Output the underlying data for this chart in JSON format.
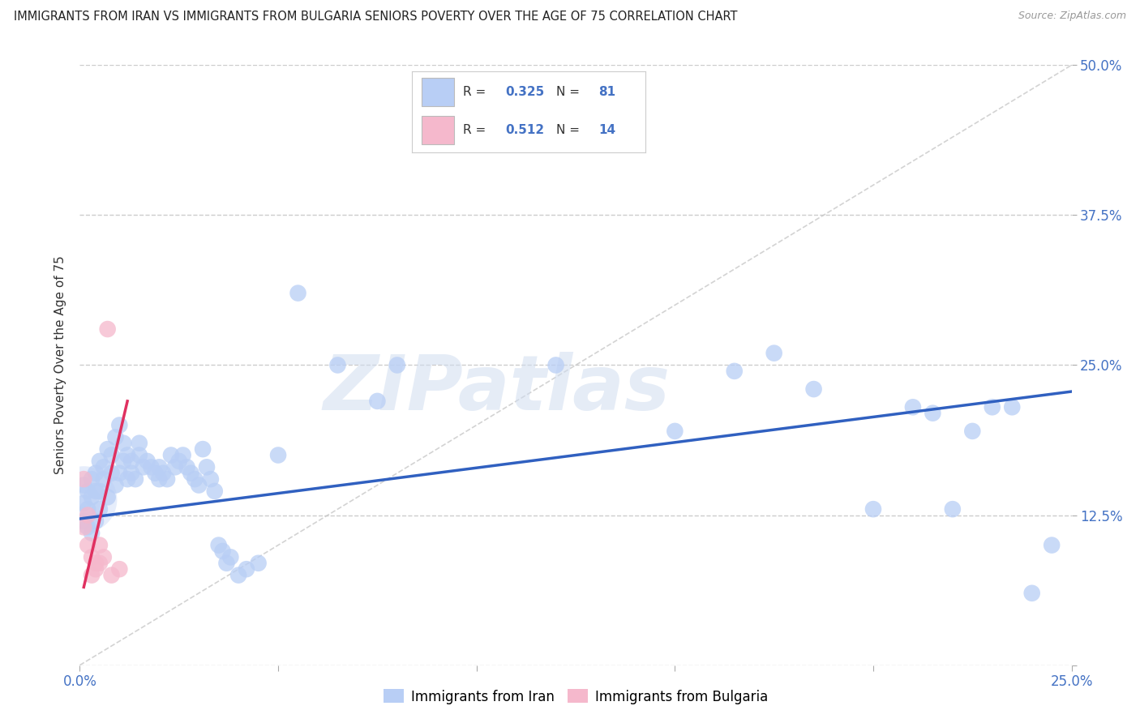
{
  "title": "IMMIGRANTS FROM IRAN VS IMMIGRANTS FROM BULGARIA SENIORS POVERTY OVER THE AGE OF 75 CORRELATION CHART",
  "source": "Source: ZipAtlas.com",
  "ylabel": "Seniors Poverty Over the Age of 75",
  "xlim": [
    0.0,
    0.25
  ],
  "ylim": [
    0.0,
    0.5
  ],
  "xticks": [
    0.0,
    0.05,
    0.1,
    0.15,
    0.2,
    0.25
  ],
  "yticks": [
    0.0,
    0.125,
    0.25,
    0.375,
    0.5
  ],
  "iran_color": "#b8cef5",
  "iran_line_color": "#3060c0",
  "bulgaria_color": "#f5b8cc",
  "bulgaria_line_color": "#e03060",
  "iran_R": "0.325",
  "iran_N": "81",
  "bulgaria_R": "0.512",
  "bulgaria_N": "14",
  "legend_label_iran": "Immigrants from Iran",
  "legend_label_bulgaria": "Immigrants from Bulgaria",
  "watermark": "ZIPatlas",
  "label_color": "#4472c4",
  "grid_color": "#cccccc",
  "ref_line_color": "#cccccc",
  "iran_x": [
    0.001,
    0.001,
    0.001,
    0.002,
    0.002,
    0.002,
    0.003,
    0.003,
    0.003,
    0.004,
    0.004,
    0.004,
    0.005,
    0.005,
    0.005,
    0.006,
    0.006,
    0.007,
    0.007,
    0.008,
    0.008,
    0.009,
    0.009,
    0.01,
    0.01,
    0.011,
    0.011,
    0.012,
    0.012,
    0.013,
    0.013,
    0.014,
    0.015,
    0.015,
    0.016,
    0.017,
    0.018,
    0.019,
    0.02,
    0.02,
    0.021,
    0.022,
    0.023,
    0.024,
    0.025,
    0.026,
    0.027,
    0.028,
    0.029,
    0.03,
    0.031,
    0.032,
    0.033,
    0.034,
    0.035,
    0.036,
    0.037,
    0.038,
    0.04,
    0.042,
    0.045,
    0.05,
    0.055,
    0.065,
    0.075,
    0.08,
    0.1,
    0.12,
    0.15,
    0.165,
    0.175,
    0.185,
    0.2,
    0.21,
    0.215,
    0.22,
    0.225,
    0.23,
    0.235,
    0.24,
    0.245
  ],
  "iran_y": [
    0.12,
    0.135,
    0.15,
    0.115,
    0.13,
    0.145,
    0.11,
    0.14,
    0.155,
    0.12,
    0.145,
    0.16,
    0.13,
    0.145,
    0.17,
    0.155,
    0.165,
    0.14,
    0.18,
    0.16,
    0.175,
    0.15,
    0.19,
    0.16,
    0.2,
    0.17,
    0.185,
    0.155,
    0.175,
    0.16,
    0.17,
    0.155,
    0.175,
    0.185,
    0.165,
    0.17,
    0.165,
    0.16,
    0.155,
    0.165,
    0.16,
    0.155,
    0.175,
    0.165,
    0.17,
    0.175,
    0.165,
    0.16,
    0.155,
    0.15,
    0.18,
    0.165,
    0.155,
    0.145,
    0.1,
    0.095,
    0.085,
    0.09,
    0.075,
    0.08,
    0.085,
    0.175,
    0.31,
    0.25,
    0.22,
    0.25,
    0.44,
    0.25,
    0.195,
    0.245,
    0.26,
    0.23,
    0.13,
    0.215,
    0.21,
    0.13,
    0.195,
    0.215,
    0.215,
    0.06,
    0.1
  ],
  "bulgaria_x": [
    0.001,
    0.001,
    0.002,
    0.002,
    0.003,
    0.003,
    0.004,
    0.004,
    0.005,
    0.005,
    0.006,
    0.007,
    0.008,
    0.01
  ],
  "bulgaria_y": [
    0.115,
    0.155,
    0.1,
    0.125,
    0.09,
    0.075,
    0.085,
    0.08,
    0.085,
    0.1,
    0.09,
    0.28,
    0.075,
    0.08
  ],
  "iran_line_x": [
    0.0,
    0.25
  ],
  "iran_line_y": [
    0.122,
    0.228
  ],
  "bulgaria_line_x": [
    0.001,
    0.012
  ],
  "bulgaria_line_y": [
    0.065,
    0.22
  ],
  "ref_line_x": [
    0.0,
    0.25
  ],
  "ref_line_y": [
    0.0,
    0.5
  ]
}
